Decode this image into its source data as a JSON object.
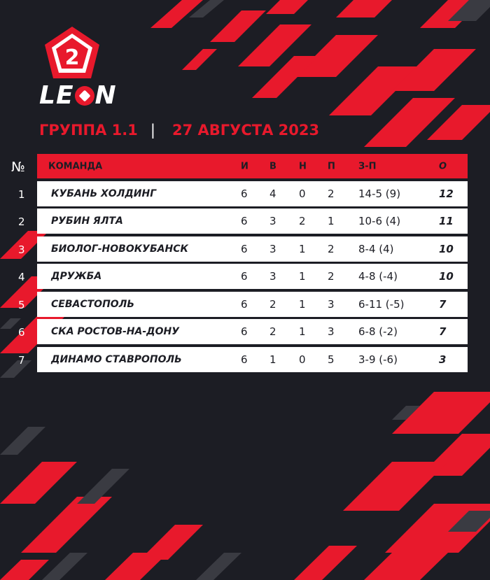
{
  "brand": {
    "logo_number": "2",
    "wordmark_left": "LE",
    "wordmark_right": "N",
    "accent": "#e8192c",
    "background": "#1c1d24"
  },
  "subtitle": {
    "group": "ГРУППА 1.1",
    "separator": "|",
    "date": "27 АВГУСТА 2023"
  },
  "table": {
    "number_header": "№",
    "headers": {
      "team": "КОМАНДА",
      "i": "И",
      "v": "В",
      "n": "Н",
      "p": "П",
      "zp": "З-П",
      "o": "О"
    },
    "rows": [
      {
        "pos": "1",
        "team": "КУБАНЬ ХОЛДИНГ",
        "i": "6",
        "v": "4",
        "n": "0",
        "p": "2",
        "zp": "14-5 (9)",
        "o": "12"
      },
      {
        "pos": "2",
        "team": "РУБИН ЯЛТА",
        "i": "6",
        "v": "3",
        "n": "2",
        "p": "1",
        "zp": "10-6 (4)",
        "o": "11"
      },
      {
        "pos": "3",
        "team": "БИОЛОГ-НОВОКУБАНСК",
        "i": "6",
        "v": "3",
        "n": "1",
        "p": "2",
        "zp": "8-4 (4)",
        "o": "10"
      },
      {
        "pos": "4",
        "team": "ДРУЖБА",
        "i": "6",
        "v": "3",
        "n": "1",
        "p": "2",
        "zp": "4-8 (-4)",
        "o": "10"
      },
      {
        "pos": "5",
        "team": "СЕВАСТОПОЛЬ",
        "i": "6",
        "v": "2",
        "n": "1",
        "p": "3",
        "zp": "6-11 (-5)",
        "o": "7"
      },
      {
        "pos": "6",
        "team": "СКА РОСТОВ-НА-ДОНУ",
        "i": "6",
        "v": "2",
        "n": "1",
        "p": "3",
        "zp": "6-8 (-2)",
        "o": "7"
      },
      {
        "pos": "7",
        "team": "ДИНАМО СТАВРОПОЛЬ",
        "i": "6",
        "v": "1",
        "n": "0",
        "p": "5",
        "zp": "3-9 (-6)",
        "o": "3"
      }
    ]
  }
}
